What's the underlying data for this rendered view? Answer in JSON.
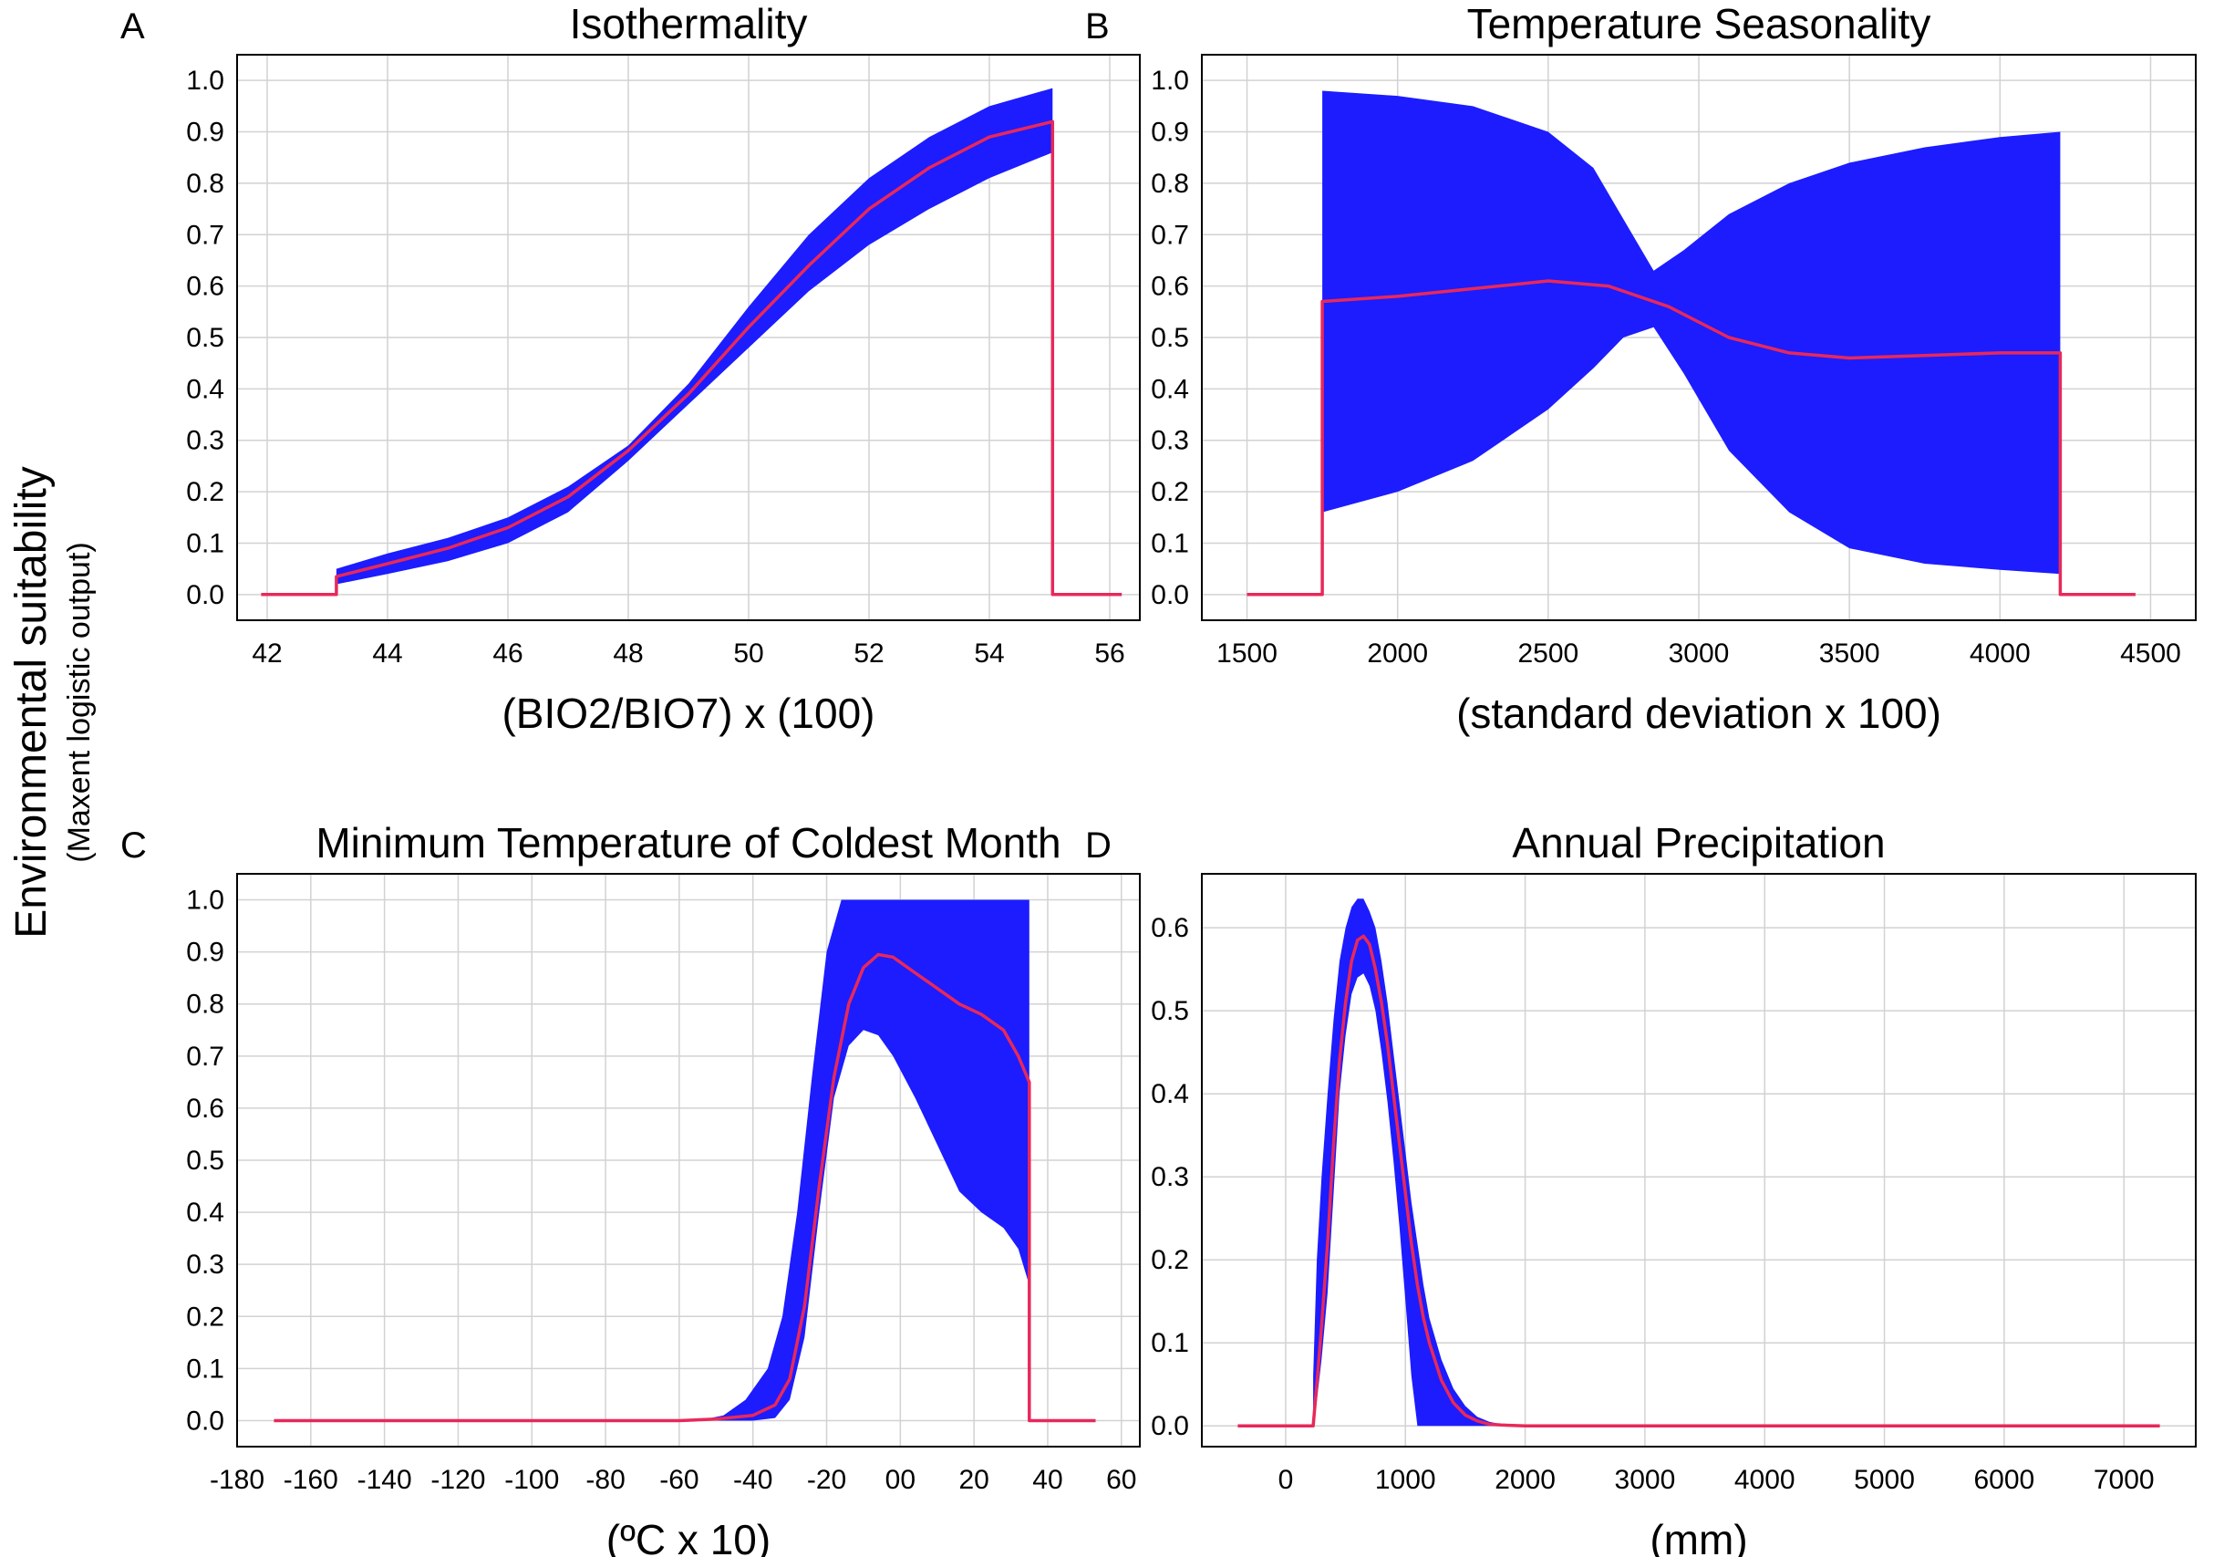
{
  "figure": {
    "ylabel": "Environmental suitability",
    "ylabel_sub": "(Maxent logistic output)"
  },
  "colors": {
    "band": "#1c1cff",
    "mean": "#e8285a",
    "grid": "#d2d2d2"
  },
  "chart_data": [
    {
      "panel": "A",
      "type": "area",
      "title": "Isothermality",
      "xlabel": "(BIO2/BIO7) x (100)",
      "xlim": [
        41.5,
        56.5
      ],
      "ylim": [
        -0.05,
        1.05
      ],
      "xticks": [
        42,
        44,
        46,
        48,
        50,
        52,
        54,
        56
      ],
      "xtick_labels": [
        "42",
        "44",
        "46",
        "48",
        "50",
        "52",
        "54",
        "56"
      ],
      "yticks": [
        0,
        0.1,
        0.2,
        0.3,
        0.4,
        0.5,
        0.6,
        0.7,
        0.8,
        0.9,
        1.0
      ],
      "ytick_labels": [
        "0.0",
        "0.1",
        "0.2",
        "0.3",
        "0.4",
        "0.5",
        "0.6",
        "0.7",
        "0.8",
        "0.9",
        "1.0"
      ],
      "grid": true,
      "series": [
        {
          "name": "mean",
          "x": [
            41.9,
            43.15,
            43.15,
            44,
            45,
            46,
            47,
            48,
            49,
            50,
            51,
            52,
            53,
            54,
            55.05,
            55.05,
            56.2
          ],
          "values": [
            0,
            0,
            0.035,
            0.06,
            0.09,
            0.13,
            0.19,
            0.28,
            0.39,
            0.52,
            0.64,
            0.75,
            0.83,
            0.89,
            0.92,
            0,
            0
          ]
        },
        {
          "name": "upper",
          "x": [
            43.15,
            44,
            45,
            46,
            47,
            48,
            49,
            50,
            51,
            52,
            53,
            54,
            55.05
          ],
          "values": [
            0.05,
            0.08,
            0.11,
            0.15,
            0.21,
            0.29,
            0.41,
            0.56,
            0.7,
            0.81,
            0.89,
            0.95,
            0.985
          ]
        },
        {
          "name": "lower",
          "x": [
            43.15,
            44,
            45,
            46,
            47,
            48,
            49,
            50,
            51,
            52,
            53,
            54,
            55.05
          ],
          "values": [
            0.02,
            0.04,
            0.065,
            0.1,
            0.16,
            0.26,
            0.37,
            0.48,
            0.59,
            0.68,
            0.75,
            0.81,
            0.86
          ]
        }
      ]
    },
    {
      "panel": "B",
      "type": "area",
      "title": "Temperature Seasonality",
      "xlabel": "(standard deviation x 100)",
      "xlim": [
        1350,
        4650
      ],
      "ylim": [
        -0.05,
        1.05
      ],
      "xticks": [
        1500,
        2000,
        2500,
        3000,
        3500,
        4000,
        4500
      ],
      "xtick_labels": [
        "1500",
        "2000",
        "2500",
        "3000",
        "3500",
        "4000",
        "4500"
      ],
      "yticks": [
        0,
        0.1,
        0.2,
        0.3,
        0.4,
        0.5,
        0.6,
        0.7,
        0.8,
        0.9,
        1.0
      ],
      "ytick_labels": [
        "0.0",
        "0.1",
        "0.2",
        "0.3",
        "0.4",
        "0.5",
        "0.6",
        "0.7",
        "0.8",
        "0.9",
        "1.0"
      ],
      "grid": true,
      "series": [
        {
          "name": "mean",
          "x": [
            1500,
            1750,
            1750,
            2000,
            2250,
            2500,
            2700,
            2900,
            3100,
            3300,
            3500,
            3750,
            4000,
            4200,
            4200,
            4450
          ],
          "values": [
            0,
            0,
            0.57,
            0.58,
            0.595,
            0.61,
            0.6,
            0.56,
            0.5,
            0.47,
            0.46,
            0.465,
            0.47,
            0.47,
            0,
            0
          ]
        },
        {
          "name": "upper",
          "x": [
            1750,
            2000,
            2250,
            2500,
            2650,
            2750,
            2850,
            2950,
            3100,
            3300,
            3500,
            3750,
            4000,
            4200
          ],
          "values": [
            0.98,
            0.97,
            0.95,
            0.9,
            0.83,
            0.73,
            0.63,
            0.67,
            0.74,
            0.8,
            0.84,
            0.87,
            0.89,
            0.9
          ]
        },
        {
          "name": "lower",
          "x": [
            1750,
            2000,
            2250,
            2500,
            2650,
            2750,
            2850,
            2950,
            3100,
            3300,
            3500,
            3750,
            4000,
            4200
          ],
          "values": [
            0.16,
            0.2,
            0.26,
            0.36,
            0.44,
            0.5,
            0.52,
            0.43,
            0.28,
            0.16,
            0.09,
            0.06,
            0.048,
            0.04
          ]
        }
      ]
    },
    {
      "panel": "C",
      "type": "area",
      "title": "Minimum Temperature of Coldest Month",
      "xlabel": "(ºC x 10)",
      "xlim": [
        -180,
        65
      ],
      "ylim": [
        -0.05,
        1.05
      ],
      "xticks": [
        -180,
        -160,
        -140,
        -120,
        -100,
        -80,
        -60,
        -40,
        -20,
        0,
        20,
        40,
        60
      ],
      "xtick_labels": [
        "-180",
        "-160",
        "-140",
        "-120",
        "-100",
        "-80",
        "-60",
        "-40",
        "-20",
        "00",
        "20",
        "40",
        "60"
      ],
      "yticks": [
        0,
        0.1,
        0.2,
        0.3,
        0.4,
        0.5,
        0.6,
        0.7,
        0.8,
        0.9,
        1.0
      ],
      "ytick_labels": [
        "0.0",
        "0.1",
        "0.2",
        "0.3",
        "0.4",
        "0.5",
        "0.6",
        "0.7",
        "0.8",
        "0.9",
        "1.0"
      ],
      "grid": true,
      "series": [
        {
          "name": "mean",
          "x": [
            -170,
            -60,
            -50,
            -40,
            -34,
            -30,
            -26,
            -22,
            -18,
            -14,
            -10,
            -6,
            -2,
            4,
            10,
            16,
            22,
            28,
            32,
            35,
            35,
            53
          ],
          "values": [
            0,
            0,
            0.003,
            0.01,
            0.03,
            0.08,
            0.22,
            0.45,
            0.66,
            0.8,
            0.87,
            0.895,
            0.89,
            0.86,
            0.83,
            0.8,
            0.78,
            0.75,
            0.7,
            0.65,
            0,
            0
          ]
        },
        {
          "name": "upper",
          "x": [
            -55,
            -48,
            -42,
            -36,
            -32,
            -28,
            -24,
            -20,
            -16,
            35
          ],
          "values": [
            0,
            0.01,
            0.04,
            0.1,
            0.2,
            0.4,
            0.66,
            0.9,
            1.0,
            1.0
          ]
        },
        {
          "name": "lower",
          "x": [
            -55,
            -40,
            -34,
            -30,
            -26,
            -22,
            -18,
            -14,
            -10,
            -6,
            -2,
            4,
            10,
            16,
            22,
            28,
            32,
            35
          ],
          "values": [
            0,
            0,
            0.005,
            0.04,
            0.16,
            0.4,
            0.62,
            0.72,
            0.75,
            0.74,
            0.7,
            0.62,
            0.53,
            0.44,
            0.4,
            0.37,
            0.33,
            0.26
          ]
        }
      ]
    },
    {
      "panel": "D",
      "type": "area",
      "title": "Annual Precipitation",
      "xlabel": "(mm)",
      "xlim": [
        -700,
        7600
      ],
      "ylim": [
        -0.025,
        0.665
      ],
      "xticks": [
        0,
        1000,
        2000,
        3000,
        4000,
        5000,
        6000,
        7000
      ],
      "xtick_labels": [
        "0",
        "1000",
        "2000",
        "3000",
        "4000",
        "5000",
        "6000",
        "7000"
      ],
      "yticks": [
        0,
        0.1,
        0.2,
        0.3,
        0.4,
        0.5,
        0.6
      ],
      "ytick_labels": [
        "0.0",
        "0.1",
        "0.2",
        "0.3",
        "0.4",
        "0.5",
        "0.6"
      ],
      "grid": true,
      "series": [
        {
          "name": "mean",
          "x": [
            -400,
            230,
            260,
            300,
            350,
            400,
            450,
            500,
            550,
            600,
            650,
            700,
            750,
            800,
            850,
            900,
            950,
            1000,
            1050,
            1100,
            1150,
            1200,
            1300,
            1400,
            1500,
            1600,
            1700,
            1800,
            2000,
            7300
          ],
          "values": [
            0,
            0,
            0.05,
            0.12,
            0.22,
            0.34,
            0.44,
            0.51,
            0.56,
            0.585,
            0.59,
            0.58,
            0.55,
            0.51,
            0.46,
            0.4,
            0.34,
            0.28,
            0.22,
            0.17,
            0.13,
            0.1,
            0.055,
            0.028,
            0.013,
            0.006,
            0.002,
            0.001,
            0,
            0
          ]
        },
        {
          "name": "upper",
          "x": [
            230,
            260,
            300,
            350,
            400,
            450,
            500,
            550,
            600,
            650,
            700,
            750,
            800,
            850,
            900,
            950,
            1000,
            1050,
            1100,
            1150,
            1200,
            1300,
            1400,
            1500,
            1600,
            1700,
            1800,
            2000
          ],
          "values": [
            0.06,
            0.2,
            0.3,
            0.4,
            0.49,
            0.56,
            0.6,
            0.625,
            0.635,
            0.635,
            0.62,
            0.6,
            0.56,
            0.51,
            0.45,
            0.39,
            0.33,
            0.27,
            0.22,
            0.17,
            0.13,
            0.08,
            0.045,
            0.024,
            0.011,
            0.005,
            0.002,
            0
          ]
        },
        {
          "name": "lower",
          "x": [
            230,
            260,
            300,
            350,
            400,
            450,
            500,
            550,
            600,
            650,
            700,
            750,
            800,
            850,
            900,
            950,
            1000,
            1050,
            1100,
            1150,
            1200,
            1300,
            1400,
            1500,
            1600,
            1700,
            1800,
            2000
          ],
          "values": [
            0.0,
            0.03,
            0.08,
            0.16,
            0.28,
            0.4,
            0.47,
            0.52,
            0.54,
            0.545,
            0.53,
            0.5,
            0.45,
            0.39,
            0.32,
            0.24,
            0.15,
            0.06,
            0.0,
            0.0,
            0.0,
            0.0,
            0.0,
            0.0,
            0.0,
            0.0,
            0.0,
            0.0
          ]
        }
      ]
    }
  ]
}
